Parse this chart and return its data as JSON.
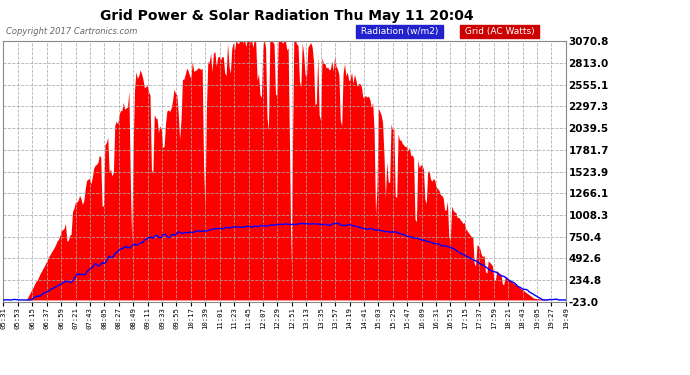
{
  "title": "Grid Power & Solar Radiation Thu May 11 20:04",
  "copyright": "Copyright 2017 Cartronics.com",
  "legend_radiation": "Radiation (w/m2)",
  "legend_grid": "Grid (AC Watts)",
  "ylabel_right": [
    "3070.8",
    "2813.0",
    "2555.1",
    "2297.3",
    "2039.5",
    "1781.7",
    "1523.9",
    "1266.1",
    "1008.3",
    "750.4",
    "492.6",
    "234.8",
    "-23.0"
  ],
  "ymin": -23.0,
  "ymax": 3070.8,
  "background_color": "#ffffff",
  "plot_bg_color": "#ffffff",
  "grid_color": "#aaaaaa",
  "red_color": "#ff0000",
  "blue_color": "#0000ff",
  "xtick_labels": [
    "05:31",
    "05:53",
    "06:15",
    "06:37",
    "06:59",
    "07:21",
    "07:43",
    "08:05",
    "08:27",
    "08:49",
    "09:11",
    "09:33",
    "09:55",
    "10:17",
    "10:39",
    "11:01",
    "11:23",
    "11:45",
    "12:07",
    "12:29",
    "12:51",
    "13:13",
    "13:35",
    "13:57",
    "14:19",
    "14:41",
    "15:03",
    "15:25",
    "15:47",
    "16:09",
    "16:31",
    "16:53",
    "17:15",
    "17:37",
    "17:59",
    "18:21",
    "18:43",
    "19:05",
    "19:27",
    "19:49"
  ]
}
